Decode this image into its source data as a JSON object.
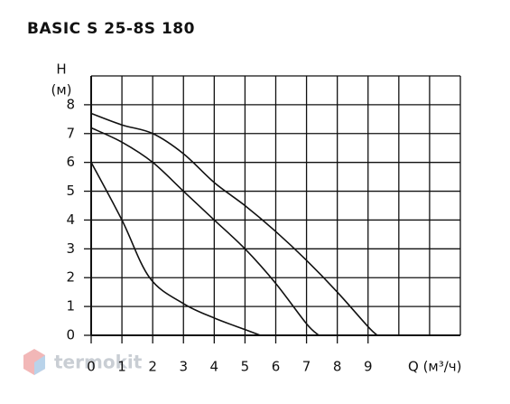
{
  "chart_data": {
    "type": "line",
    "title": "BASIC S 25-8S 180",
    "y_label_top": "H",
    "y_label": "(м)",
    "x_label": "Q (м³/ч)",
    "watermark": "termokit",
    "xlim": [
      0,
      12
    ],
    "ylim": [
      0,
      9
    ],
    "grid_step": 1,
    "grid": true,
    "xticks": [
      0,
      1,
      2,
      3,
      4,
      5,
      6,
      7,
      8,
      9
    ],
    "yticks": [
      0,
      1,
      2,
      3,
      4,
      5,
      6,
      7,
      8
    ],
    "series": [
      {
        "color": "#111111",
        "x": [
          0,
          1,
          1.9,
          3,
          4,
          5,
          5.5
        ],
        "values": [
          6,
          4,
          2,
          1.1,
          0.6,
          0.2,
          0
        ]
      },
      {
        "color": "#111111",
        "x": [
          0,
          1,
          2,
          3,
          4,
          5,
          6,
          7,
          7.4
        ],
        "values": [
          7.2,
          6.7,
          6,
          5,
          4,
          3,
          1.8,
          0.4,
          0
        ]
      },
      {
        "color": "#111111",
        "x": [
          0,
          1,
          2,
          3,
          4,
          5,
          6,
          7,
          8,
          9,
          9.3
        ],
        "values": [
          7.7,
          7.3,
          7,
          6.3,
          5.3,
          4.5,
          3.6,
          2.6,
          1.5,
          0.3,
          0
        ]
      }
    ]
  }
}
